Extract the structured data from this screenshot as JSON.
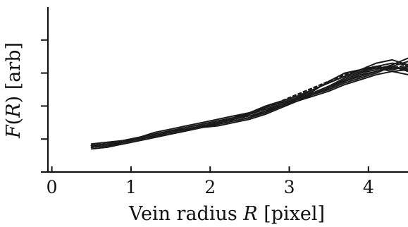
{
  "chart_data": {
    "type": "line",
    "xlabel_parts": [
      "Vein radius ",
      "R",
      " [pixel]"
    ],
    "ylabel_parts": [
      "F",
      "(",
      "R",
      ") [arb]"
    ],
    "xlim": [
      -0.05,
      4.5
    ],
    "ylim": [
      0,
      1
    ],
    "x_ticks": [
      0,
      1,
      2,
      3,
      4
    ],
    "x_tick_labels": [
      "0",
      "1",
      "2",
      "3",
      "4"
    ],
    "y_ticks": [
      0.0,
      0.2,
      0.4,
      0.6,
      0.8
    ],
    "y_tick_labels": [
      "",
      "",
      "",
      "",
      ""
    ],
    "grid": false,
    "legend": "none",
    "line_color": "#1a1a1a",
    "series": [
      {
        "x": [
          0.5,
          0.7,
          0.9,
          1.1,
          1.3,
          1.5,
          1.7,
          1.9,
          2.1,
          2.3,
          2.5,
          2.7,
          2.9,
          3.1,
          3.3,
          3.5,
          3.7,
          3.9,
          4.1,
          4.3,
          4.5
        ],
        "y": [
          0.17,
          0.18,
          0.19,
          0.21,
          0.23,
          0.25,
          0.27,
          0.29,
          0.31,
          0.33,
          0.36,
          0.39,
          0.42,
          0.45,
          0.48,
          0.52,
          0.56,
          0.6,
          0.64,
          0.66,
          0.65
        ]
      },
      {
        "x": [
          0.5,
          0.7,
          0.9,
          1.1,
          1.3,
          1.5,
          1.7,
          1.9,
          2.1,
          2.3,
          2.5,
          2.7,
          2.9,
          3.1,
          3.3,
          3.5,
          3.7,
          3.9,
          4.1,
          4.3,
          4.5
        ],
        "y": [
          0.14,
          0.15,
          0.17,
          0.19,
          0.21,
          0.23,
          0.25,
          0.27,
          0.29,
          0.31,
          0.33,
          0.36,
          0.4,
          0.43,
          0.47,
          0.51,
          0.55,
          0.59,
          0.61,
          0.63,
          0.63
        ]
      },
      {
        "x": [
          0.5,
          0.7,
          0.9,
          1.1,
          1.3,
          1.5,
          1.7,
          1.9,
          2.1,
          2.3,
          2.5,
          2.7,
          2.9,
          3.1,
          3.3,
          3.5,
          3.7,
          3.9,
          4.1,
          4.3,
          4.5
        ],
        "y": [
          0.15,
          0.16,
          0.18,
          0.2,
          0.22,
          0.24,
          0.26,
          0.28,
          0.3,
          0.32,
          0.35,
          0.38,
          0.41,
          0.44,
          0.47,
          0.5,
          0.54,
          0.57,
          0.6,
          0.64,
          0.67
        ]
      },
      {
        "x": [
          0.5,
          0.7,
          0.9,
          1.1,
          1.3,
          1.5,
          1.7,
          1.9,
          2.1,
          2.3,
          2.5,
          2.7,
          2.9,
          3.1,
          3.3,
          3.5,
          3.7,
          3.9,
          4.1,
          4.3,
          4.5
        ],
        "y": [
          0.16,
          0.17,
          0.18,
          0.2,
          0.22,
          0.24,
          0.26,
          0.27,
          0.29,
          0.31,
          0.33,
          0.36,
          0.4,
          0.44,
          0.49,
          0.55,
          0.6,
          0.62,
          0.63,
          0.64,
          0.61
        ]
      },
      {
        "x": [
          0.5,
          0.7,
          0.9,
          1.1,
          1.3,
          1.5,
          1.7,
          1.9,
          2.1,
          2.3,
          2.5,
          2.7,
          2.9,
          3.1,
          3.3,
          3.5,
          3.7,
          3.9,
          4.1,
          4.3,
          4.5
        ],
        "y": [
          0.15,
          0.16,
          0.17,
          0.19,
          0.21,
          0.23,
          0.25,
          0.27,
          0.3,
          0.33,
          0.36,
          0.4,
          0.43,
          0.46,
          0.5,
          0.54,
          0.58,
          0.62,
          0.64,
          0.62,
          0.64
        ]
      },
      {
        "x": [
          0.5,
          0.7,
          0.9,
          1.1,
          1.3,
          1.5,
          1.7,
          1.9,
          2.1,
          2.3,
          2.5,
          2.7,
          2.9,
          3.1,
          3.3,
          3.5,
          3.7,
          3.9,
          4.1,
          4.3,
          4.5
        ],
        "y": [
          0.16,
          0.17,
          0.19,
          0.21,
          0.23,
          0.25,
          0.26,
          0.28,
          0.29,
          0.31,
          0.33,
          0.37,
          0.41,
          0.45,
          0.48,
          0.52,
          0.57,
          0.61,
          0.63,
          0.61,
          0.59
        ]
      },
      {
        "x": [
          0.5,
          0.7,
          0.9,
          1.1,
          1.3,
          1.5,
          1.7,
          1.9,
          2.1,
          2.3,
          2.5,
          2.7,
          2.9,
          3.1,
          3.3,
          3.5,
          3.7,
          3.9,
          4.1,
          4.3,
          4.5
        ],
        "y": [
          0.15,
          0.16,
          0.17,
          0.19,
          0.21,
          0.23,
          0.25,
          0.27,
          0.28,
          0.3,
          0.32,
          0.35,
          0.39,
          0.43,
          0.46,
          0.49,
          0.53,
          0.56,
          0.59,
          0.61,
          0.62
        ]
      },
      {
        "x": [
          0.5,
          0.7,
          0.9,
          1.1,
          1.3,
          1.5,
          1.7,
          1.9,
          2.1,
          2.3,
          2.5,
          2.7,
          2.9,
          3.1,
          3.3,
          3.5,
          3.7,
          3.9,
          4.1,
          4.3,
          4.5
        ],
        "y": [
          0.16,
          0.17,
          0.19,
          0.21,
          0.24,
          0.26,
          0.28,
          0.3,
          0.32,
          0.34,
          0.36,
          0.39,
          0.42,
          0.45,
          0.47,
          0.51,
          0.55,
          0.58,
          0.61,
          0.64,
          0.62
        ]
      },
      {
        "x": [
          0.5,
          0.7,
          0.9,
          1.1,
          1.3,
          1.5,
          1.7,
          1.9,
          2.1,
          2.3,
          2.5,
          2.7,
          2.9,
          3.1,
          3.3,
          3.5,
          3.7,
          3.9,
          4.1,
          4.3,
          4.5
        ],
        "y": [
          0.17,
          0.18,
          0.19,
          0.21,
          0.23,
          0.25,
          0.27,
          0.29,
          0.31,
          0.33,
          0.35,
          0.38,
          0.41,
          0.45,
          0.5,
          0.54,
          0.58,
          0.62,
          0.66,
          0.68,
          0.65
        ]
      },
      {
        "x": [
          0.5,
          0.7,
          0.9,
          1.1,
          1.3,
          1.5,
          1.7,
          1.9,
          2.1,
          2.3,
          2.5,
          2.7,
          2.9,
          3.1,
          3.3,
          3.5,
          3.7,
          3.9,
          4.1,
          4.3,
          4.5
        ],
        "y": [
          0.15,
          0.16,
          0.18,
          0.2,
          0.22,
          0.24,
          0.26,
          0.28,
          0.3,
          0.32,
          0.34,
          0.37,
          0.4,
          0.43,
          0.47,
          0.51,
          0.56,
          0.6,
          0.62,
          0.65,
          0.69
        ]
      },
      {
        "x": [
          0.5,
          0.7,
          0.9,
          1.1,
          1.3,
          1.5,
          1.7,
          1.9,
          2.1,
          2.3,
          2.5,
          2.7,
          2.9,
          3.1,
          3.3,
          3.5,
          3.7,
          3.9,
          4.1,
          4.3,
          4.5
        ],
        "y": [
          0.16,
          0.17,
          0.19,
          0.2,
          0.22,
          0.24,
          0.26,
          0.28,
          0.3,
          0.32,
          0.35,
          0.39,
          0.43,
          0.47,
          0.51,
          0.55,
          0.59,
          0.62,
          0.64,
          0.63,
          0.65
        ],
        "dashed": true
      }
    ]
  }
}
